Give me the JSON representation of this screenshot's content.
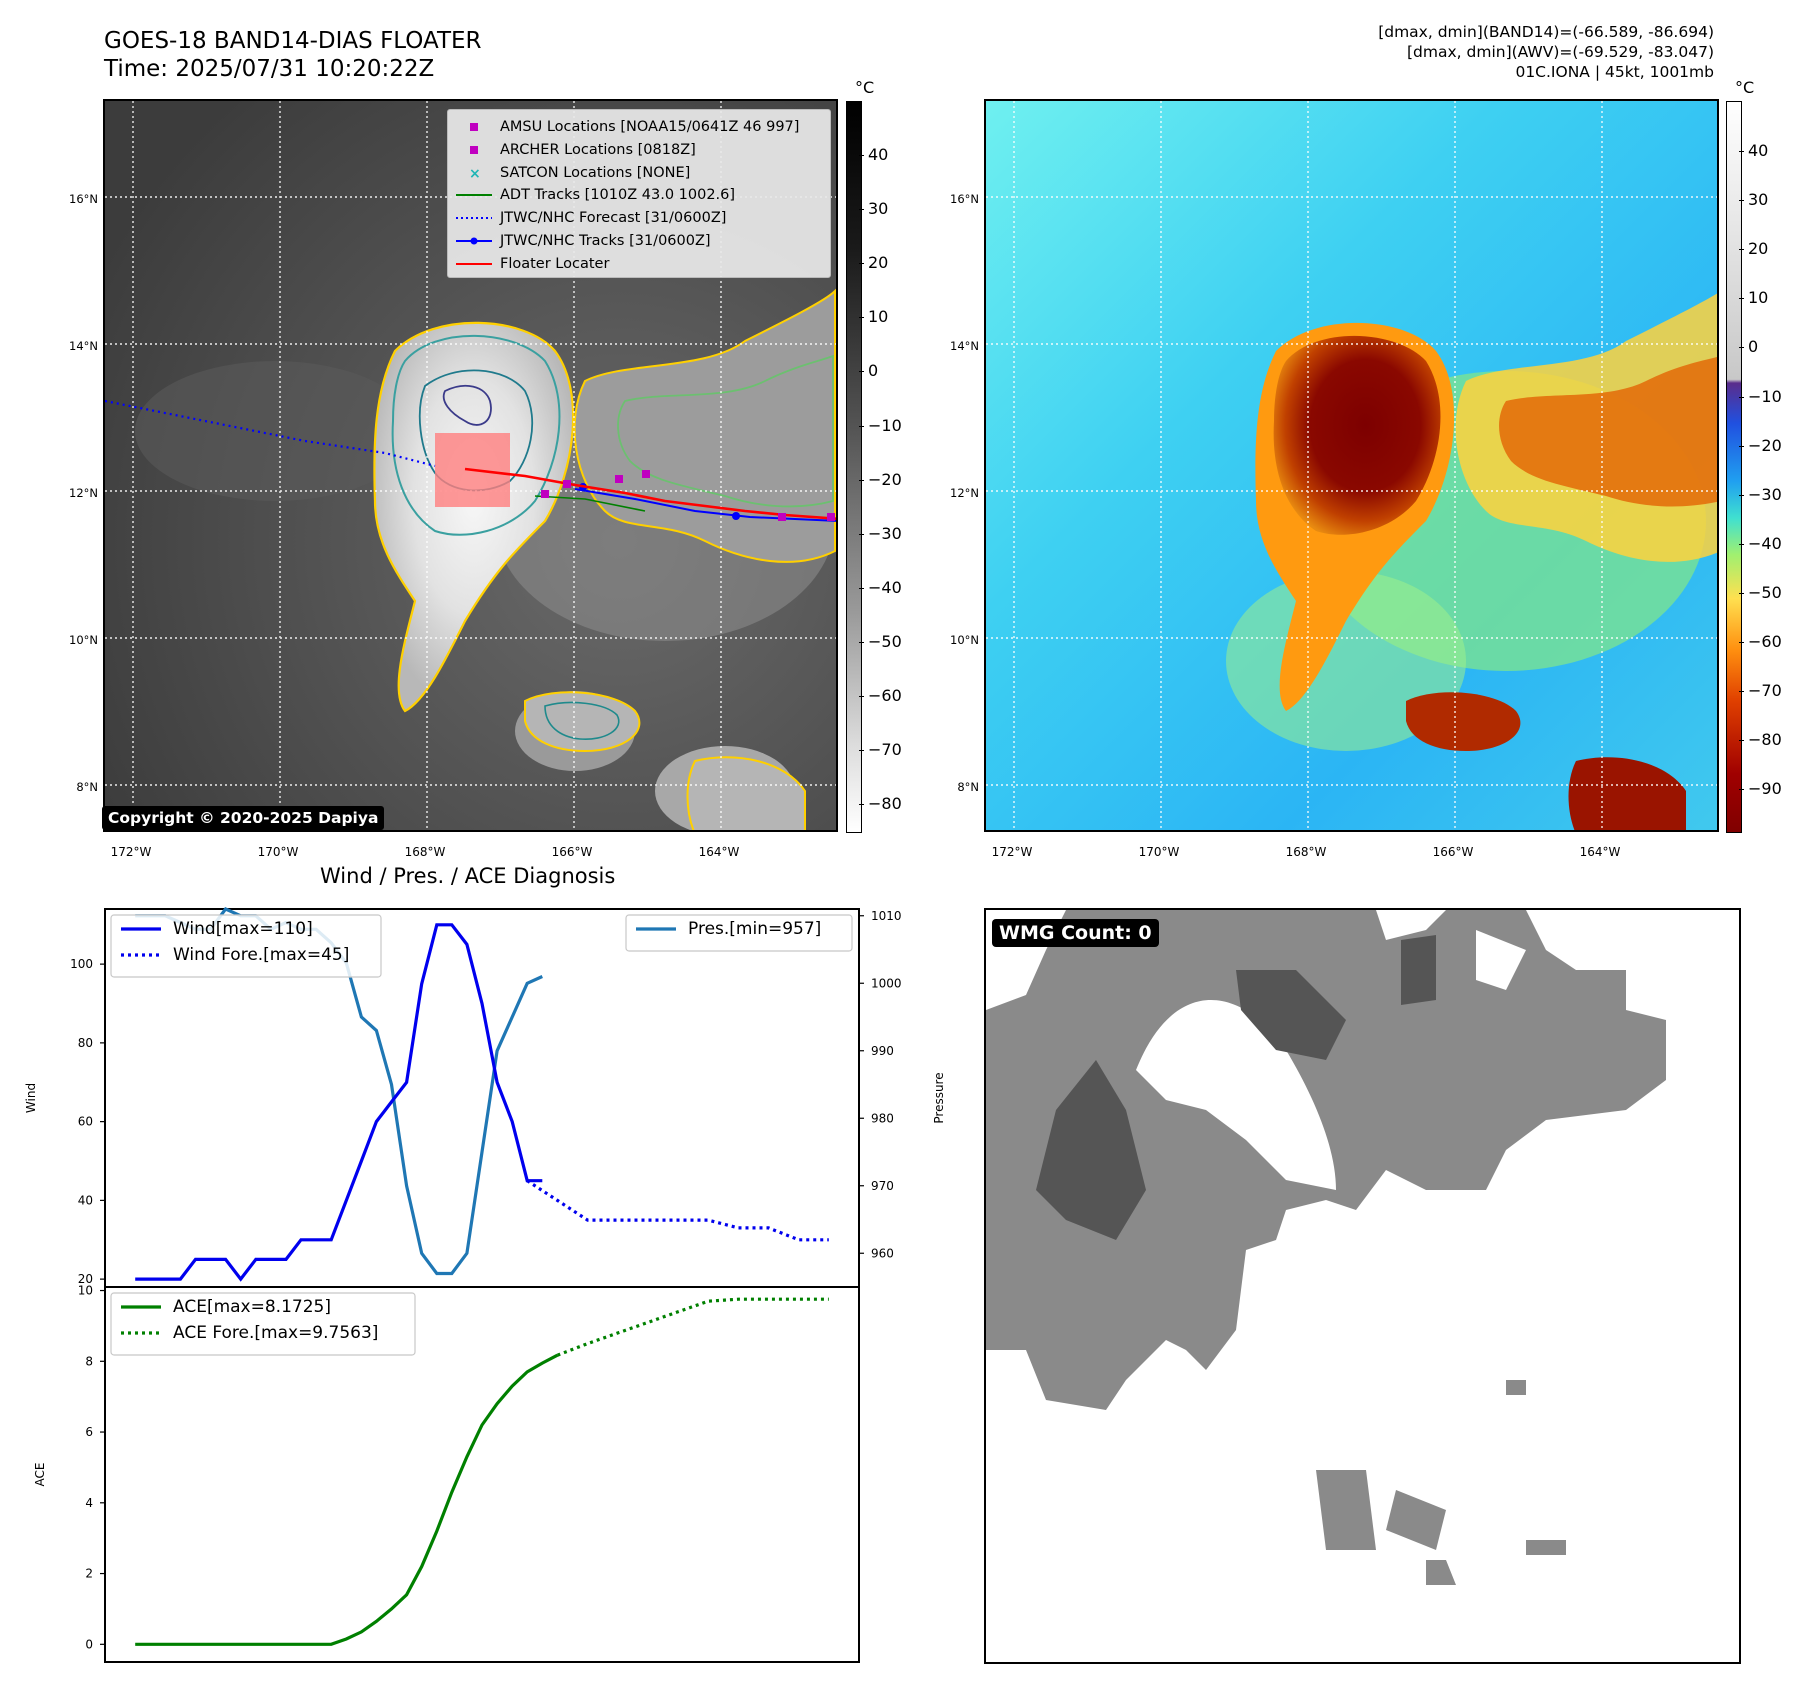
{
  "header": {
    "title_line1": "GOES-18 BAND14-DIAS FLOATER",
    "title_line2": "Time: 2025/07/31 10:20:22Z",
    "info_line1": "[dmax, dmin](BAND14)=(-66.589, -86.694)",
    "info_line2": "[dmax, dmin](AWV)=(-69.529, -83.047)",
    "info_line3": "01C.IONA | 45kt, 1001mb"
  },
  "map_axes": {
    "lat_labels": [
      "16°N",
      "14°N",
      "12°N",
      "10°N",
      "8°N"
    ],
    "lon_labels": [
      "172°W",
      "170°W",
      "168°W",
      "166°W",
      "164°W"
    ]
  },
  "colorbar_left": {
    "unit": "°C",
    "ticks": [
      "40",
      "30",
      "20",
      "10",
      "0",
      "−10",
      "−20",
      "−30",
      "−40",
      "−50",
      "−60",
      "−70",
      "−80"
    ]
  },
  "colorbar_right": {
    "unit": "°C",
    "ticks": [
      "40",
      "30",
      "20",
      "10",
      "0",
      "−10",
      "−20",
      "−30",
      "−40",
      "−50",
      "−60",
      "−70",
      "−80",
      "−90"
    ]
  },
  "legend": {
    "items": [
      {
        "label": "AMSU Locations [NOAA15/0641Z 46 997]",
        "color": "#c000c0",
        "kind": "square"
      },
      {
        "label": "ARCHER Locations [0818Z]",
        "color": "#c000c0",
        "kind": "square"
      },
      {
        "label": "SATCON Locations [NONE]",
        "color": "#1fb5b5",
        "kind": "x"
      },
      {
        "label": "ADT Tracks [1010Z 43.0 1002.6]",
        "color": "#008000",
        "kind": "line"
      },
      {
        "label": "JTWC/NHC Forecast [31/0600Z]",
        "color": "#0000ff",
        "kind": "dotted"
      },
      {
        "label": "JTWC/NHC Tracks [31/0600Z]",
        "color": "#0000ff",
        "kind": "line-dot"
      },
      {
        "label": "Floater Locater",
        "color": "#ff0000",
        "kind": "line"
      }
    ]
  },
  "copyright": "Copyright © 2020-2025 Dapiya",
  "wmg_label": "WMG Count: 0",
  "colors": {
    "wind": "#0000ee",
    "pressure": "#1f77b4",
    "ace": "#008000",
    "floater": "#ff0000",
    "track": "#0000ff"
  },
  "chart_data": [
    {
      "type": "line",
      "title": "Wind / Pres. / ACE Diagnosis",
      "ylabel": "Wind",
      "ylabel_right": "Pressure",
      "ylim": [
        18,
        114
      ],
      "ylim_right": [
        955,
        1011
      ],
      "yticks": [
        "20",
        "40",
        "60",
        "80",
        "100"
      ],
      "yticks_right": [
        "960",
        "970",
        "980",
        "990",
        "1000",
        "1010"
      ],
      "x": [
        0,
        1,
        2,
        3,
        4,
        5,
        6,
        7,
        8,
        9,
        10,
        11,
        12,
        13,
        14,
        15,
        16,
        17,
        18,
        19,
        20,
        21,
        22,
        23,
        24,
        25,
        26,
        27,
        28
      ],
      "series": [
        {
          "name": "Wind[max=110]",
          "axis": "left",
          "style": "solid",
          "values": [
            20,
            20,
            20,
            20,
            25,
            25,
            25,
            20,
            25,
            25,
            25,
            30,
            30,
            30,
            40,
            50,
            60,
            65,
            70,
            95,
            110,
            110,
            105,
            90,
            70,
            60,
            45,
            45,
            null
          ]
        },
        {
          "name": "Wind Fore.[max=45]",
          "axis": "left",
          "style": "dotted",
          "x": [
            26,
            28,
            30,
            32,
            34,
            36,
            38,
            40,
            42,
            44,
            46
          ],
          "values": [
            45,
            40,
            35,
            35,
            35,
            35,
            35,
            33,
            33,
            30,
            30
          ]
        },
        {
          "name": "Pres.[min=957]",
          "axis": "right",
          "style": "solid",
          "values": [
            1010,
            1010,
            1010,
            1009,
            1008,
            1008,
            1011,
            1010,
            1010,
            1008,
            1009,
            1008,
            1008,
            1006,
            1003,
            995,
            993,
            985,
            970,
            960,
            957,
            957,
            960,
            975,
            990,
            995,
            1000,
            1001,
            null
          ]
        }
      ],
      "xlim": [
        -2,
        48
      ]
    },
    {
      "type": "line",
      "ylabel": "ACE",
      "ylim": [
        -0.5,
        10.1
      ],
      "yticks": [
        "0",
        "2",
        "4",
        "6",
        "8",
        "10"
      ],
      "xlim": [
        -2,
        48
      ],
      "series": [
        {
          "name": "ACE[max=8.1725]",
          "style": "solid",
          "x": [
            0,
            1,
            2,
            3,
            4,
            5,
            6,
            7,
            8,
            9,
            10,
            11,
            12,
            13,
            14,
            15,
            16,
            17,
            18,
            19,
            20,
            21,
            22,
            23,
            24,
            25,
            26,
            27,
            28
          ],
          "values": [
            0,
            0,
            0,
            0,
            0,
            0,
            0,
            0,
            0,
            0,
            0,
            0,
            0,
            0,
            0.15,
            0.35,
            0.65,
            1.0,
            1.4,
            2.2,
            3.2,
            4.3,
            5.3,
            6.2,
            6.8,
            7.3,
            7.7,
            7.95,
            8.1725
          ]
        },
        {
          "name": "ACE Fore.[max=9.7563]",
          "style": "dotted",
          "x": [
            28,
            30,
            32,
            34,
            36,
            38,
            40,
            42,
            44,
            46
          ],
          "values": [
            8.1725,
            8.5,
            8.8,
            9.1,
            9.4,
            9.7,
            9.7563,
            9.7563,
            9.7563,
            9.7563
          ]
        }
      ]
    }
  ]
}
